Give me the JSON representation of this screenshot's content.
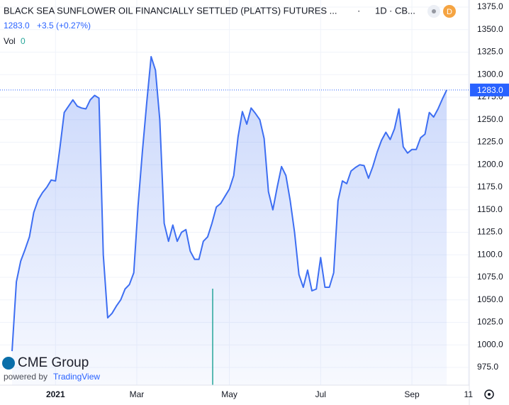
{
  "chart_data": {
    "type": "area",
    "title": "BLACK SEA SUNFLOWER OIL FINANCIALLY SETTLED (PLATTS) FUTURES ...",
    "interval": "1D",
    "exchange": "CB...",
    "badge": "D",
    "quote": {
      "last": "1283.0",
      "change": "+3.5 (+0.27%)"
    },
    "volume": {
      "label": "Vol",
      "value": 0
    },
    "color": "#3d6ef2",
    "grid": true,
    "values": [
      993,
      1070,
      1093,
      1106,
      1120,
      1147,
      1161,
      1169,
      1175,
      1183,
      1182,
      1218,
      1258,
      1265,
      1272,
      1265,
      1263,
      1262,
      1272,
      1277,
      1274,
      1100,
      1030,
      1035,
      1043,
      1050,
      1062,
      1067,
      1080,
      1155,
      1215,
      1270,
      1320,
      1305,
      1250,
      1135,
      1115,
      1133,
      1115,
      1125,
      1128,
      1104,
      1095,
      1095,
      1115,
      1120,
      1135,
      1153,
      1157,
      1165,
      1173,
      1188,
      1231,
      1259,
      1245,
      1263,
      1257,
      1250,
      1229,
      1170,
      1150,
      1175,
      1198,
      1188,
      1160,
      1125,
      1078,
      1064,
      1083,
      1060,
      1062,
      1097,
      1064,
      1064,
      1080,
      1160,
      1182,
      1179,
      1193,
      1197,
      1200,
      1199,
      1185,
      1198,
      1214,
      1227,
      1236,
      1228,
      1240,
      1262,
      1220,
      1213,
      1217,
      1217,
      1230,
      1234,
      1258,
      1253,
      1262,
      1273,
      1283
    ],
    "last_price": {
      "value": 1283,
      "label": "1283.0"
    },
    "xlim": [
      -2.77,
      105.2
    ],
    "xticks": [
      {
        "value": 10,
        "label": "2021"
      },
      {
        "value": 28.7,
        "label": "Mar"
      },
      {
        "value": 50,
        "label": "May"
      },
      {
        "value": 71,
        "label": "Jul"
      },
      {
        "value": 92,
        "label": "Sep"
      },
      {
        "value": 105,
        "label": "11"
      }
    ],
    "ylim": [
      955.3,
      1382.9
    ],
    "yticks": [
      {
        "value": 975,
        "label": "975.0"
      },
      {
        "value": 1000,
        "label": "1000.0"
      },
      {
        "value": 1025,
        "label": "1025.0"
      },
      {
        "value": 1050,
        "label": "1050.0"
      },
      {
        "value": 1075,
        "label": "1075.0"
      },
      {
        "value": 1100,
        "label": "1100.0"
      },
      {
        "value": 1125,
        "label": "1125.0"
      },
      {
        "value": 1150,
        "label": "1150.0"
      },
      {
        "value": 1175,
        "label": "1175.0"
      },
      {
        "value": 1200,
        "label": "1200.0"
      },
      {
        "value": 1225,
        "label": "1225.0"
      },
      {
        "value": 1250,
        "label": "1250.0"
      },
      {
        "value": 1275,
        "label": "1275.0"
      },
      {
        "value": 1300,
        "label": "1300.0"
      },
      {
        "value": 1325,
        "label": "1325.0"
      },
      {
        "value": 1350,
        "label": "1350.0"
      },
      {
        "value": 1375,
        "label": "1375.0"
      }
    ],
    "logo": {
      "name": "CME Group",
      "powered": "powered by",
      "brand": "TradingView"
    }
  }
}
